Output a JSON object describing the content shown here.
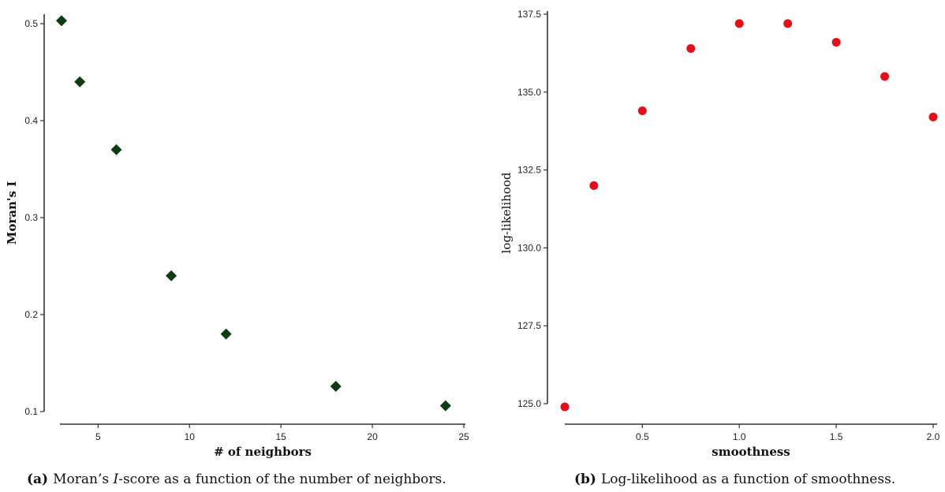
{
  "chart_data": [
    {
      "type": "scatter",
      "xlabel": "# of neighbors",
      "ylabel": "Moran's I",
      "xlim": [
        3,
        25
      ],
      "ylim": [
        0.1,
        0.5
      ],
      "xticks": [
        5,
        10,
        15,
        20,
        25
      ],
      "yticks": [
        0.1,
        0.2,
        0.3,
        0.4,
        0.5
      ],
      "marker": "diamond",
      "color": "#0f3b12",
      "x": [
        3,
        4,
        6,
        9,
        12,
        18,
        24
      ],
      "y": [
        0.503,
        0.44,
        0.37,
        0.24,
        0.18,
        0.126,
        0.106
      ],
      "grid": false
    },
    {
      "type": "scatter",
      "xlabel": "smoothness",
      "ylabel": "log-likelihood",
      "xlim": [
        0.1,
        2.0
      ],
      "ylim": [
        125.0,
        137.5
      ],
      "xticks": [
        0.5,
        1.0,
        1.5,
        2.0
      ],
      "yticks": [
        125.0,
        127.5,
        130.0,
        132.5,
        135.0,
        137.5
      ],
      "marker": "circle",
      "color": "#e3101a",
      "x": [
        0.1,
        0.25,
        0.5,
        0.75,
        1.0,
        1.25,
        1.5,
        1.75,
        2.0
      ],
      "y": [
        124.9,
        132.0,
        134.4,
        136.4,
        137.2,
        137.2,
        136.6,
        135.5,
        134.2
      ],
      "grid": false
    }
  ],
  "captions": [
    {
      "label": "(a)",
      "pre": "Moran’s ",
      "italic": "I",
      "post": "-score as a function of the number of neighbors."
    },
    {
      "label": "(b)",
      "pre": "Log-likelihood as a function of smoothness.",
      "italic": "",
      "post": ""
    }
  ]
}
